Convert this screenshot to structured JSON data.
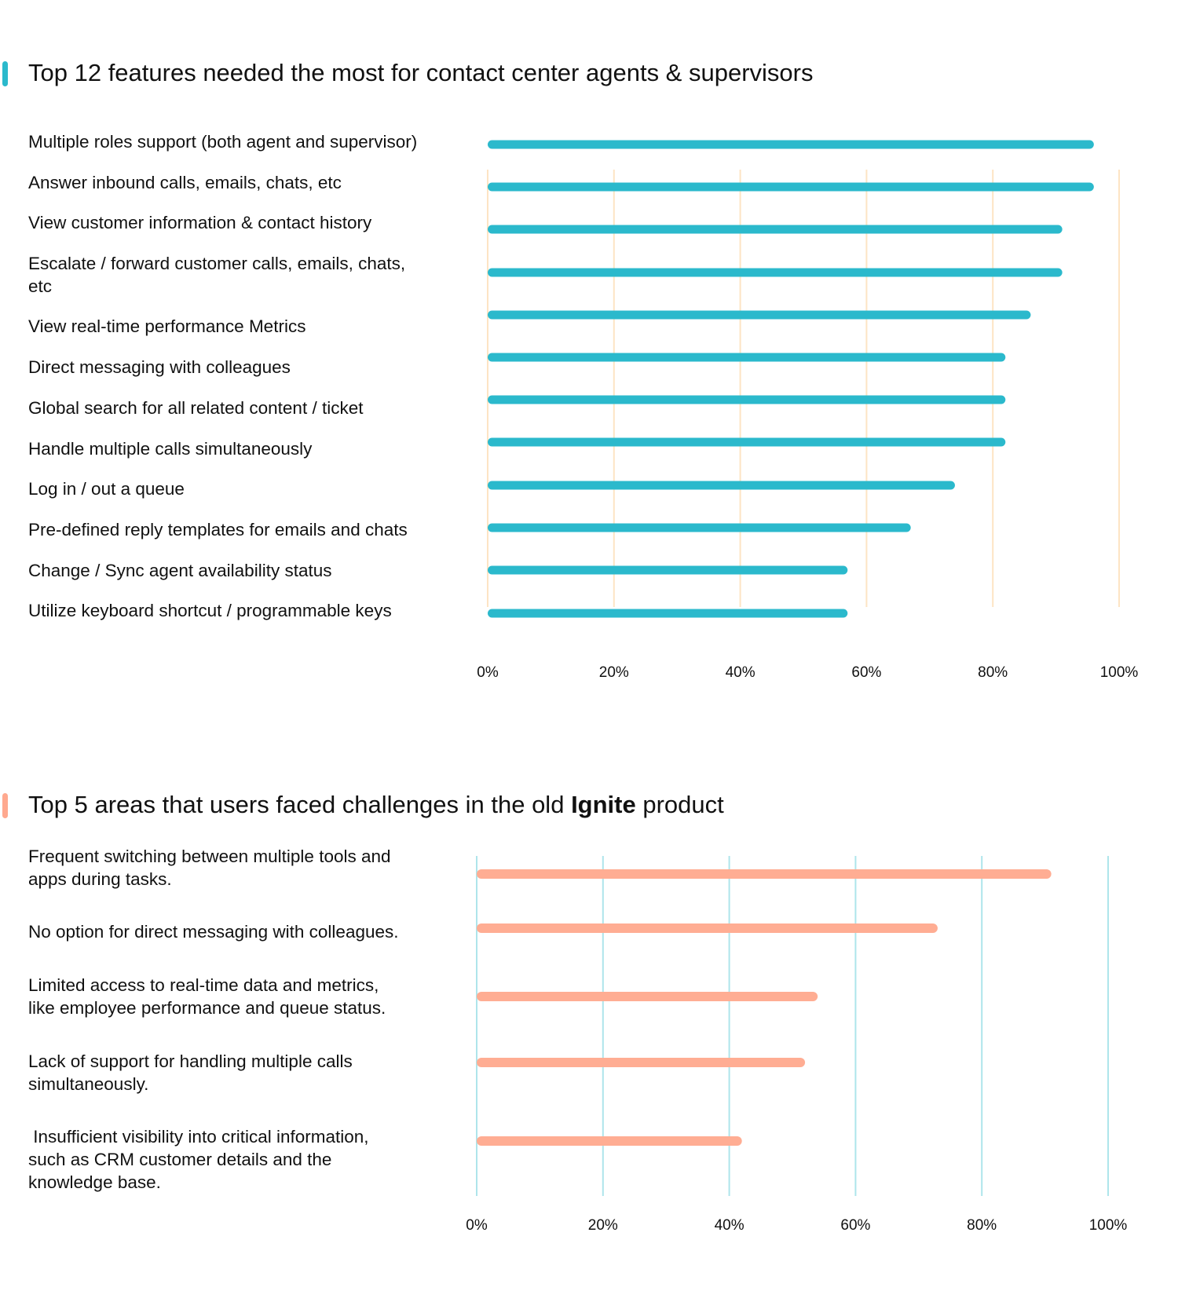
{
  "chart_data": [
    {
      "type": "bar",
      "orientation": "horizontal",
      "title": "Top 12 features needed the most for contact center agents & supervisors",
      "accent_color": "#2bb9cc",
      "bar_color": "#2bb9cc",
      "grid_color": "#fde4c4",
      "grid": true,
      "xlim": [
        0,
        100
      ],
      "tick_labels": [
        "0%",
        "20%",
        "40%",
        "60%",
        "80%",
        "100%"
      ],
      "categories": [
        "Multiple roles support (both agent and supervisor)",
        "Answer inbound calls, emails, chats, etc",
        "View customer information & contact history",
        "Escalate / forward customer calls, emails, chats,\netc",
        "View real-time performance Metrics",
        "Direct messaging with colleagues",
        "Global search for all related content / ticket",
        "Handle multiple calls simultaneously",
        "Log in / out a queue",
        "Pre-defined reply templates for emails and chats",
        "Change / Sync agent availability status",
        "Utilize keyboard shortcut / programmable keys"
      ],
      "values": [
        96,
        96,
        91,
        91,
        86,
        82,
        82,
        82,
        74,
        67,
        57,
        57
      ]
    },
    {
      "type": "bar",
      "orientation": "horizontal",
      "title_parts": [
        "Top 5 areas that users faced challenges in the old ",
        "Ignite",
        " product"
      ],
      "accent_color": "#ffa98f",
      "bar_color": "#ffad93",
      "grid_color": "#aee5eb",
      "grid": true,
      "xlim": [
        0,
        100
      ],
      "tick_labels": [
        "0%",
        "20%",
        "40%",
        "60%",
        "80%",
        "100%"
      ],
      "categories": [
        "Frequent switching between multiple tools and\napps during tasks.",
        "No option for direct messaging with colleagues.",
        "Limited access to real-time data and metrics,\nlike employee performance and queue status.",
        "Lack of support for handling multiple calls\nsimultaneously.",
        " Insufficient visibility into critical information,\nsuch as CRM customer details and the\nknowledge base."
      ],
      "values": [
        91,
        73,
        54,
        52,
        42
      ]
    }
  ]
}
